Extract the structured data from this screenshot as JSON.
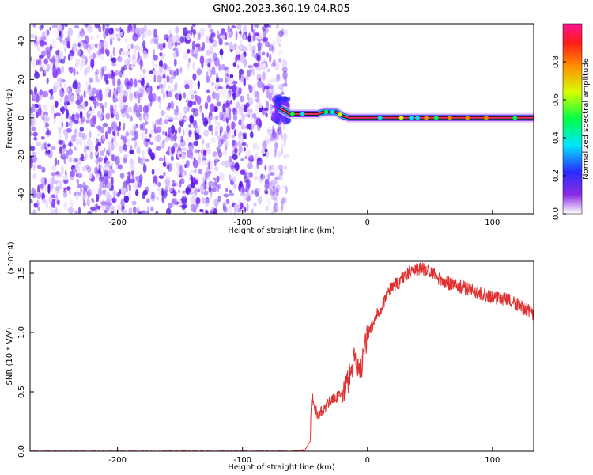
{
  "title": "GN02.2023.360.19.04.R05",
  "colors": {
    "spec_cool": "#7b2cff",
    "spec_light": "#d9c2ff",
    "snr_line": "#e03030"
  },
  "colorbar": {
    "label": "Normalized spectral amplitude",
    "ticks": [
      "0.0",
      "0.2",
      "0.4",
      "0.6",
      "0.8"
    ],
    "range": [
      0,
      1
    ]
  },
  "chart_data": [
    {
      "type": "heatmap",
      "title": "GN02.2023.360.19.04.R05",
      "xlabel": "Height of straight line (km)",
      "ylabel": "Frequency (Hz)",
      "xlim": [
        -270,
        133
      ],
      "ylim": [
        -50,
        49
      ],
      "xticks": [
        "-200",
        "-100",
        "0",
        "100"
      ],
      "yticks": [
        "-40",
        "-20",
        "0",
        "20",
        "40"
      ],
      "noise_region": {
        "x": [
          -270,
          -70
        ],
        "amplitude_range": [
          0.05,
          0.4
        ]
      },
      "signal_line": {
        "x_start": -70,
        "x_end": 133,
        "freq_points": [
          [
            -70,
            5
          ],
          [
            -62,
            2
          ],
          [
            -40,
            2
          ],
          [
            -35,
            3
          ],
          [
            -25,
            3
          ],
          [
            -20,
            1
          ],
          [
            -15,
            0
          ],
          [
            133,
            0
          ]
        ],
        "peak_amplitude": 1.0
      },
      "grid": false
    },
    {
      "type": "line",
      "xlabel": "Height of straight line (km)",
      "ylabel": "SNR (10 * V/V)",
      "y_multiplier": "(x10^4)",
      "xlim": [
        -270,
        133
      ],
      "ylim": [
        0,
        1.6
      ],
      "xticks": [
        "-200",
        "-100",
        "0",
        "100"
      ],
      "yticks": [
        "0.0",
        "0.5",
        "1.0",
        "1.5"
      ],
      "series": [
        {
          "x": [
            -270,
            -200,
            -150,
            -100,
            -60,
            -50,
            -46,
            -45,
            -44,
            -40,
            -35,
            -30,
            -25,
            -20,
            -15,
            -10,
            -5,
            0,
            5,
            10,
            15,
            20,
            25,
            30,
            35,
            40,
            45,
            50,
            55,
            60,
            70,
            80,
            90,
            100,
            110,
            120,
            125,
            130,
            133
          ],
          "values": [
            0.0,
            0.0,
            0.0,
            0.0,
            0.0,
            0.01,
            0.08,
            0.35,
            0.45,
            0.3,
            0.36,
            0.42,
            0.45,
            0.5,
            0.6,
            0.78,
            0.7,
            0.98,
            1.08,
            1.2,
            1.3,
            1.4,
            1.42,
            1.48,
            1.52,
            1.54,
            1.53,
            1.52,
            1.48,
            1.43,
            1.4,
            1.37,
            1.33,
            1.3,
            1.28,
            1.24,
            1.2,
            1.18,
            1.15
          ]
        }
      ],
      "grid": false
    }
  ]
}
